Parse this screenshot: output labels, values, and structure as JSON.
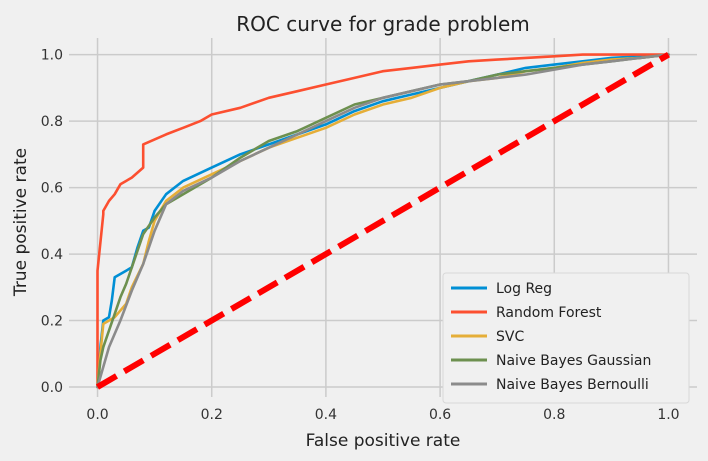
{
  "chart_data": {
    "type": "line",
    "title": "ROC curve for grade problem",
    "xlabel": "False positive rate",
    "ylabel": "True positive rate",
    "xlim": [
      -0.05,
      1.05
    ],
    "ylim": [
      -0.03,
      1.05
    ],
    "xticks": [
      0.0,
      0.2,
      0.4,
      0.6,
      0.8,
      1.0
    ],
    "xtick_labels": [
      "0.0",
      "0.2",
      "0.4",
      "0.6",
      "0.8",
      "1.0"
    ],
    "yticks": [
      0.0,
      0.2,
      0.4,
      0.6,
      0.8,
      1.0
    ],
    "ytick_labels": [
      "0.0",
      "0.2",
      "0.4",
      "0.6",
      "0.8",
      "1.0"
    ],
    "grid": true,
    "legend_position": "lower-right",
    "series": [
      {
        "name": "Log Reg",
        "color": "#008fd5",
        "x": [
          0.0,
          0.005,
          0.01,
          0.02,
          0.025,
          0.03,
          0.04,
          0.05,
          0.06,
          0.07,
          0.08,
          0.09,
          0.1,
          0.12,
          0.15,
          0.2,
          0.25,
          0.3,
          0.35,
          0.4,
          0.45,
          0.5,
          0.55,
          0.6,
          0.65,
          0.7,
          0.75,
          0.8,
          0.85,
          0.9,
          0.95,
          1.0
        ],
        "y": [
          0.0,
          0.12,
          0.2,
          0.21,
          0.26,
          0.33,
          0.34,
          0.35,
          0.36,
          0.42,
          0.47,
          0.48,
          0.53,
          0.58,
          0.62,
          0.66,
          0.7,
          0.73,
          0.76,
          0.79,
          0.83,
          0.86,
          0.88,
          0.9,
          0.92,
          0.94,
          0.96,
          0.97,
          0.98,
          0.99,
          0.995,
          1.0
        ]
      },
      {
        "name": "Random Forest",
        "color": "#fc4f30",
        "x": [
          0.0,
          0.0,
          0.01,
          0.01,
          0.02,
          0.03,
          0.04,
          0.06,
          0.08,
          0.08,
          0.12,
          0.15,
          0.18,
          0.2,
          0.25,
          0.3,
          0.35,
          0.4,
          0.45,
          0.5,
          0.55,
          0.6,
          0.65,
          0.7,
          0.75,
          0.8,
          0.85,
          0.9,
          0.95,
          1.0
        ],
        "y": [
          0.0,
          0.35,
          0.52,
          0.53,
          0.56,
          0.58,
          0.61,
          0.63,
          0.66,
          0.73,
          0.76,
          0.78,
          0.8,
          0.82,
          0.84,
          0.87,
          0.89,
          0.91,
          0.93,
          0.95,
          0.96,
          0.97,
          0.98,
          0.985,
          0.99,
          0.995,
          1.0,
          1.0,
          1.0,
          1.0
        ]
      },
      {
        "name": "SVC",
        "color": "#e5ae38",
        "x": [
          0.0,
          0.005,
          0.01,
          0.03,
          0.05,
          0.06,
          0.08,
          0.09,
          0.1,
          0.12,
          0.15,
          0.2,
          0.25,
          0.3,
          0.35,
          0.4,
          0.45,
          0.5,
          0.55,
          0.6,
          0.65,
          0.7,
          0.75,
          0.8,
          0.85,
          0.9,
          0.95,
          1.0
        ],
        "y": [
          0.0,
          0.1,
          0.19,
          0.21,
          0.25,
          0.3,
          0.37,
          0.44,
          0.5,
          0.56,
          0.6,
          0.64,
          0.68,
          0.72,
          0.75,
          0.78,
          0.82,
          0.85,
          0.87,
          0.9,
          0.92,
          0.93,
          0.95,
          0.96,
          0.975,
          0.985,
          0.99,
          1.0
        ]
      },
      {
        "name": "Naive Bayes Gaussian",
        "color": "#6d904f",
        "x": [
          0.0,
          0.005,
          0.01,
          0.02,
          0.03,
          0.04,
          0.05,
          0.06,
          0.07,
          0.08,
          0.1,
          0.12,
          0.15,
          0.2,
          0.25,
          0.3,
          0.35,
          0.4,
          0.45,
          0.5,
          0.55,
          0.6,
          0.65,
          0.7,
          0.75,
          0.8,
          0.85,
          0.9,
          0.95,
          1.0
        ],
        "y": [
          0.0,
          0.08,
          0.12,
          0.17,
          0.22,
          0.27,
          0.31,
          0.36,
          0.41,
          0.46,
          0.51,
          0.55,
          0.58,
          0.63,
          0.69,
          0.74,
          0.77,
          0.81,
          0.85,
          0.87,
          0.89,
          0.91,
          0.92,
          0.94,
          0.95,
          0.96,
          0.97,
          0.98,
          0.99,
          1.0
        ]
      },
      {
        "name": "Naive Bayes Bernoulli",
        "color": "#8b8b8b",
        "x": [
          0.0,
          0.02,
          0.04,
          0.06,
          0.08,
          0.1,
          0.12,
          0.15,
          0.2,
          0.25,
          0.3,
          0.35,
          0.4,
          0.45,
          0.5,
          0.55,
          0.6,
          0.65,
          0.7,
          0.75,
          0.8,
          0.85,
          0.9,
          0.95,
          1.0
        ],
        "y": [
          0.0,
          0.12,
          0.2,
          0.29,
          0.37,
          0.47,
          0.55,
          0.59,
          0.63,
          0.68,
          0.72,
          0.76,
          0.8,
          0.84,
          0.87,
          0.89,
          0.91,
          0.92,
          0.93,
          0.94,
          0.955,
          0.97,
          0.98,
          0.99,
          1.0
        ]
      },
      {
        "name": "",
        "color": "#ff0000",
        "style": "dashed",
        "x": [
          0.0,
          1.0
        ],
        "y": [
          0.0,
          1.0
        ]
      }
    ]
  }
}
